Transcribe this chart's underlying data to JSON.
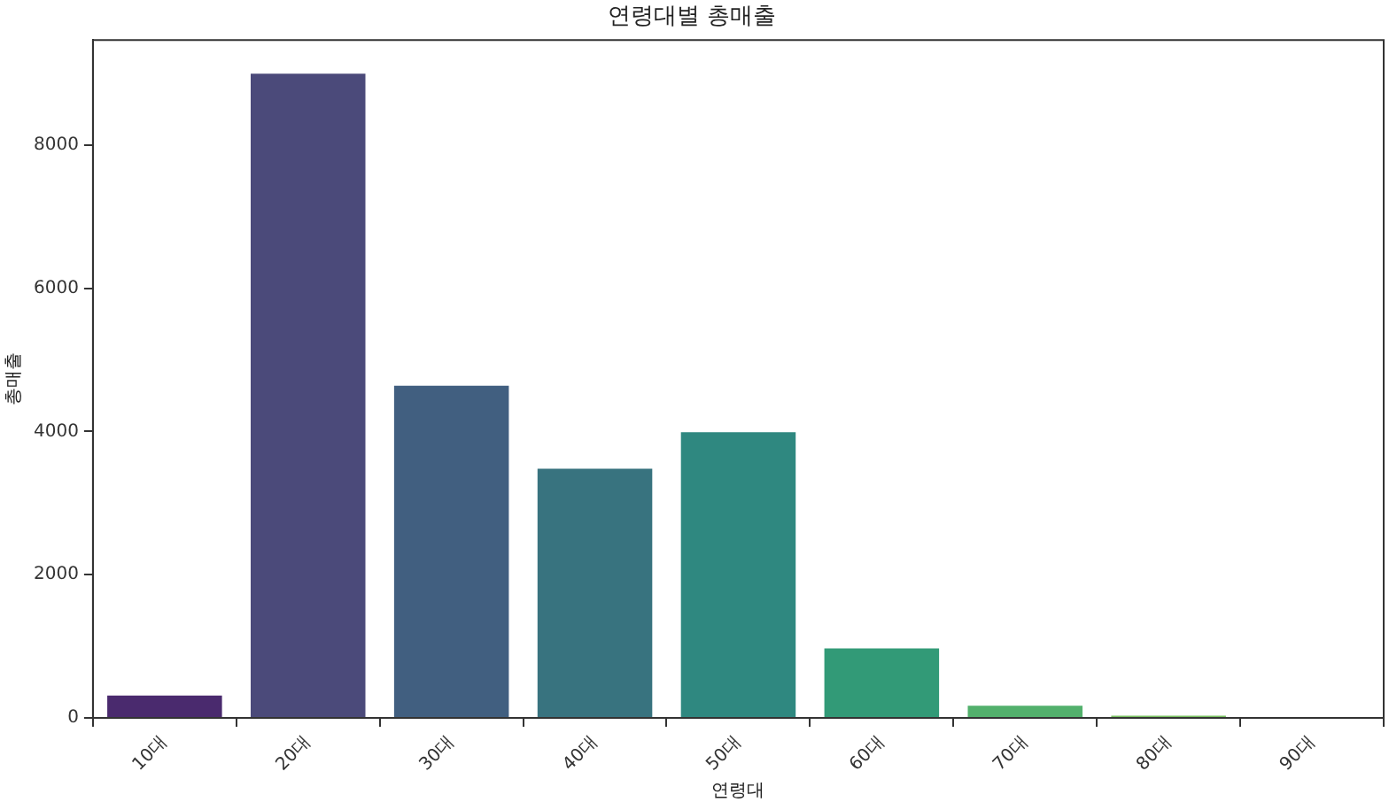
{
  "chart_data": {
    "type": "bar",
    "title": "연령대별 총매출",
    "xlabel": "연령대",
    "ylabel": "총매출",
    "categories": [
      "10대",
      "20대",
      "30대",
      "40대",
      "50대",
      "60대",
      "70대",
      "80대",
      "90대"
    ],
    "values": [
      310,
      9000,
      4640,
      3480,
      3990,
      970,
      170,
      30,
      null
    ],
    "colors": [
      "#4a2a6e",
      "#4b4a7a",
      "#415f80",
      "#38737f",
      "#2f8880",
      "#329a77",
      "#52b06c",
      "#79c060",
      "#b0d050"
    ],
    "ylim": [
      0,
      9470
    ],
    "yticks": [
      0,
      2000,
      4000,
      6000,
      8000
    ],
    "grid": false,
    "legend": false
  }
}
